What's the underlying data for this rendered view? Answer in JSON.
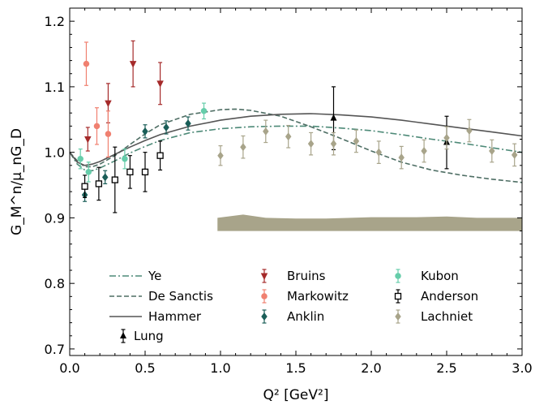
{
  "chart_data": {
    "type": "scatter",
    "xlabel": "Q² [GeV²]",
    "ylabel": "G_M^n/μ_nG_D",
    "xlim": [
      0.0,
      3.0
    ],
    "ylim": [
      0.69,
      1.22
    ],
    "x_ticks": [
      "0.0",
      "0.5",
      "1.0",
      "1.5",
      "2.0",
      "2.5",
      "3.0"
    ],
    "y_ticks": [
      "0.7",
      "0.8",
      "0.9",
      "1.0",
      "1.1",
      "1.2"
    ],
    "grid": false,
    "legend_position": "bottom",
    "band": {
      "color": "#a8a48a",
      "x": [
        0.98,
        1.15,
        1.3,
        1.5,
        1.7,
        2.0,
        2.3,
        2.5,
        2.7,
        3.0
      ],
      "lower": [
        0.88,
        0.88,
        0.88,
        0.88,
        0.88,
        0.88,
        0.88,
        0.88,
        0.88,
        0.88
      ],
      "upper": [
        0.9,
        0.905,
        0.9,
        0.899,
        0.899,
        0.901,
        0.901,
        0.902,
        0.9,
        0.9
      ]
    },
    "curves": [
      {
        "name": "Ye",
        "color": "#4e8a78",
        "dash": "dashdot",
        "x": [
          0.0,
          0.05,
          0.1,
          0.15,
          0.2,
          0.3,
          0.4,
          0.5,
          0.6,
          0.8,
          1.0,
          1.2,
          1.4,
          1.6,
          1.8,
          2.0,
          2.2,
          2.4,
          2.6,
          2.8,
          3.0
        ],
        "y": [
          1.0,
          0.982,
          0.973,
          0.972,
          0.976,
          0.987,
          0.999,
          1.009,
          1.018,
          1.03,
          1.036,
          1.039,
          1.04,
          1.04,
          1.037,
          1.033,
          1.027,
          1.02,
          1.014,
          1.007,
          1.0
        ]
      },
      {
        "name": "De Sanctis",
        "color": "#4e6e64",
        "dash": "dashed",
        "x": [
          0.0,
          0.05,
          0.1,
          0.15,
          0.2,
          0.3,
          0.4,
          0.5,
          0.6,
          0.8,
          1.0,
          1.1,
          1.2,
          1.4,
          1.6,
          1.8,
          2.0,
          2.2,
          2.4,
          2.6,
          2.8,
          3.0
        ],
        "y": [
          1.0,
          0.987,
          0.978,
          0.978,
          0.982,
          0.995,
          1.012,
          1.028,
          1.042,
          1.058,
          1.065,
          1.066,
          1.064,
          1.055,
          1.039,
          1.021,
          1.002,
          0.985,
          0.973,
          0.965,
          0.959,
          0.954
        ]
      },
      {
        "name": "Hammer",
        "color": "#555555",
        "dash": "solid",
        "x": [
          0.0,
          0.05,
          0.1,
          0.15,
          0.2,
          0.3,
          0.4,
          0.5,
          0.6,
          0.8,
          1.0,
          1.2,
          1.4,
          1.6,
          1.8,
          2.0,
          2.2,
          2.4,
          2.6,
          2.8,
          3.0
        ],
        "y": [
          1.0,
          0.985,
          0.98,
          0.982,
          0.986,
          0.997,
          1.008,
          1.018,
          1.027,
          1.04,
          1.049,
          1.055,
          1.058,
          1.059,
          1.057,
          1.054,
          1.049,
          1.043,
          1.037,
          1.031,
          1.025
        ]
      }
    ],
    "series": [
      {
        "name": "Lung",
        "marker": "triangle-up",
        "color": "#000000",
        "points": [
          {
            "x": 1.75,
            "y": 1.052,
            "err": 0.048
          },
          {
            "x": 2.5,
            "y": 1.015,
            "err": 0.04
          }
        ]
      },
      {
        "name": "Bruins",
        "marker": "triangle-down",
        "color": "#a52a2a",
        "points": [
          {
            "x": 0.12,
            "y": 1.02,
            "err": 0.018
          },
          {
            "x": 0.255,
            "y": 1.075,
            "err": 0.03
          },
          {
            "x": 0.42,
            "y": 1.135,
            "err": 0.035
          },
          {
            "x": 0.6,
            "y": 1.105,
            "err": 0.032
          }
        ]
      },
      {
        "name": "Markowitz",
        "marker": "circle",
        "color": "#f08070",
        "points": [
          {
            "x": 0.11,
            "y": 1.135,
            "err": 0.033
          },
          {
            "x": 0.18,
            "y": 1.04,
            "err": 0.028
          },
          {
            "x": 0.255,
            "y": 1.028,
            "err": 0.035
          }
        ]
      },
      {
        "name": "Anklin",
        "marker": "diamond",
        "color": "#1a5e58",
        "points": [
          {
            "x": 0.1,
            "y": 0.935,
            "err": 0.01
          },
          {
            "x": 0.235,
            "y": 0.962,
            "err": 0.01
          },
          {
            "x": 0.5,
            "y": 1.032,
            "err": 0.01
          },
          {
            "x": 0.64,
            "y": 1.038,
            "err": 0.01
          },
          {
            "x": 0.785,
            "y": 1.044,
            "err": 0.01
          }
        ]
      },
      {
        "name": "Kubon",
        "marker": "circle",
        "color": "#66cdaa",
        "points": [
          {
            "x": 0.071,
            "y": 0.99,
            "err": 0.015
          },
          {
            "x": 0.125,
            "y": 0.97,
            "err": 0.015
          },
          {
            "x": 0.365,
            "y": 0.99,
            "err": 0.015
          },
          {
            "x": 0.89,
            "y": 1.063,
            "err": 0.012
          }
        ]
      },
      {
        "name": "Anderson",
        "marker": "square-open",
        "color": "#000000",
        "points": [
          {
            "x": 0.1,
            "y": 0.948,
            "err": 0.017
          },
          {
            "x": 0.193,
            "y": 0.952,
            "err": 0.025
          },
          {
            "x": 0.3,
            "y": 0.958,
            "err": 0.05
          },
          {
            "x": 0.4,
            "y": 0.97,
            "err": 0.025
          },
          {
            "x": 0.5,
            "y": 0.97,
            "err": 0.03
          },
          {
            "x": 0.6,
            "y": 0.995,
            "err": 0.022
          }
        ]
      },
      {
        "name": "Lachniet",
        "marker": "diamond",
        "color": "#a8a48a",
        "points": [
          {
            "x": 1.0,
            "y": 0.995,
            "err": 0.015
          },
          {
            "x": 1.15,
            "y": 1.008,
            "err": 0.017
          },
          {
            "x": 1.3,
            "y": 1.032,
            "err": 0.017
          },
          {
            "x": 1.45,
            "y": 1.024,
            "err": 0.017
          },
          {
            "x": 1.6,
            "y": 1.013,
            "err": 0.017
          },
          {
            "x": 1.75,
            "y": 1.013,
            "err": 0.017
          },
          {
            "x": 1.9,
            "y": 1.017,
            "err": 0.017
          },
          {
            "x": 2.05,
            "y": 1.0,
            "err": 0.017
          },
          {
            "x": 2.2,
            "y": 0.992,
            "err": 0.017
          },
          {
            "x": 2.35,
            "y": 1.002,
            "err": 0.017
          },
          {
            "x": 2.5,
            "y": 1.022,
            "err": 0.017
          },
          {
            "x": 2.65,
            "y": 1.033,
            "err": 0.017
          },
          {
            "x": 2.8,
            "y": 1.002,
            "err": 0.017
          },
          {
            "x": 2.95,
            "y": 0.996,
            "err": 0.017
          }
        ]
      }
    ]
  }
}
